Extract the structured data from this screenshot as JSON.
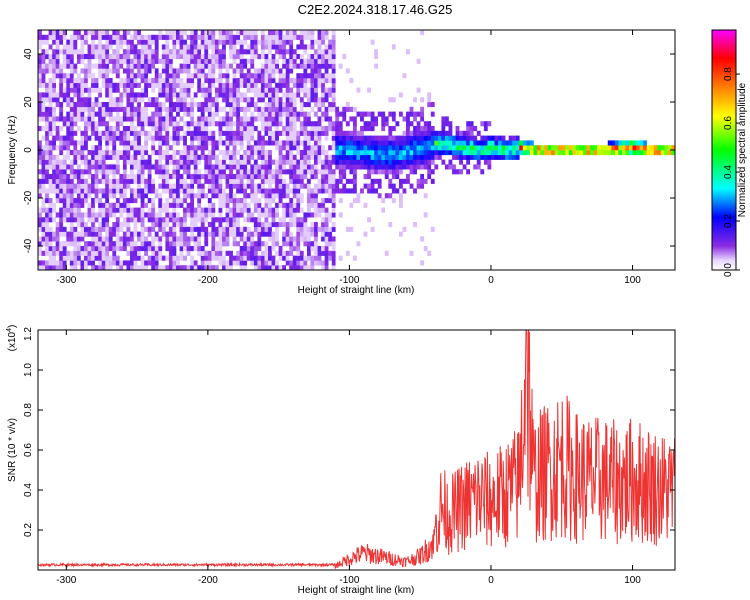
{
  "title": "C2E2.2024.318.17.46.G25",
  "chart_data": [
    {
      "type": "heatmap",
      "xlabel": "Height of straight line (km)",
      "ylabel": "Frequency (Hz)",
      "xlim": [
        -320,
        130
      ],
      "ylim": [
        -50,
        50
      ],
      "xticks": [
        -300,
        -200,
        -100,
        0,
        100
      ],
      "xtick_labels": [
        "-300",
        "-200",
        "-100",
        "0",
        "100"
      ],
      "yticks": [
        -40,
        -20,
        0,
        20,
        40
      ],
      "ytick_labels": [
        "-40",
        "-20",
        "0",
        "20",
        "40"
      ],
      "colorbar": {
        "label": "Normalized spectral amplitude",
        "range": [
          0,
          0.98
        ],
        "ticks": [
          0.0,
          0.2,
          0.4,
          0.6,
          0.8
        ],
        "tick_labels": [
          "0.0",
          "0.2",
          "0.4",
          "0.6",
          "0.8"
        ],
        "colormap": [
          "#ffffff",
          "#8a2be2",
          "#0000ff",
          "#00ffff",
          "#00ff00",
          "#ffff00",
          "#ff8000",
          "#ff0000",
          "#ff00ff"
        ]
      },
      "regions": [
        {
          "x_range": [
            -320,
            -110
          ],
          "freq_range": [
            -50,
            50
          ],
          "amplitude": 0.05,
          "description_level": "broadband low"
        },
        {
          "x_range": [
            -110,
            -40
          ],
          "center_hz": 0,
          "half_width_hz": 8,
          "amplitude": 0.35
        },
        {
          "x_range": [
            -40,
            20
          ],
          "center_hz": 0,
          "half_width_hz": 5,
          "amplitude": 0.5
        },
        {
          "x_range": [
            20,
            130
          ],
          "center_hz": 0,
          "half_width_hz": 3,
          "amplitude": 0.95
        }
      ],
      "ridge": {
        "x": [
          -110,
          -90,
          -70,
          -50,
          -40,
          -30,
          -20,
          -10,
          0,
          10,
          20,
          30,
          40,
          60,
          80,
          100,
          110,
          130
        ],
        "y": [
          0,
          -1,
          -2,
          1,
          3,
          2,
          1,
          0,
          1,
          0,
          1,
          0,
          0,
          0,
          0,
          1,
          0,
          0
        ]
      }
    },
    {
      "type": "line",
      "xlabel": "Height of straight line (km)",
      "ylabel": "SNR (10 * v/v)",
      "y_multiplier": "(x10",
      "y_multiplier_exp": "4",
      "y_multiplier_close": ")",
      "xlim": [
        -320,
        130
      ],
      "ylim": [
        0,
        1.2
      ],
      "xticks": [
        -300,
        -200,
        -100,
        0,
        100
      ],
      "xtick_labels": [
        "-300",
        "-200",
        "-100",
        "0",
        "100"
      ],
      "yticks": [
        0.2,
        0.4,
        0.6,
        0.8,
        1.0,
        1.2
      ],
      "ytick_labels": [
        "0.2",
        "0.4",
        "0.6",
        "0.8",
        "1.0",
        "1.2"
      ],
      "line_color": "#ee3333",
      "series": [
        {
          "x": [
            -320,
            -300,
            -250,
            -200,
            -150,
            -110,
            -100,
            -90,
            -80,
            -70,
            -60,
            -50,
            -40,
            -35,
            -30,
            -20,
            -10,
            0,
            10,
            20,
            25,
            30,
            40,
            50,
            60,
            70,
            80,
            90,
            100,
            110,
            120,
            130
          ],
          "y": [
            0.02,
            0.02,
            0.02,
            0.025,
            0.025,
            0.03,
            0.08,
            0.12,
            0.1,
            0.08,
            0.06,
            0.1,
            0.2,
            0.35,
            0.3,
            0.35,
            0.4,
            0.38,
            0.42,
            0.48,
            1.2,
            0.5,
            0.55,
            0.6,
            0.52,
            0.5,
            0.5,
            0.48,
            0.5,
            0.48,
            0.45,
            0.45
          ]
        }
      ]
    }
  ]
}
